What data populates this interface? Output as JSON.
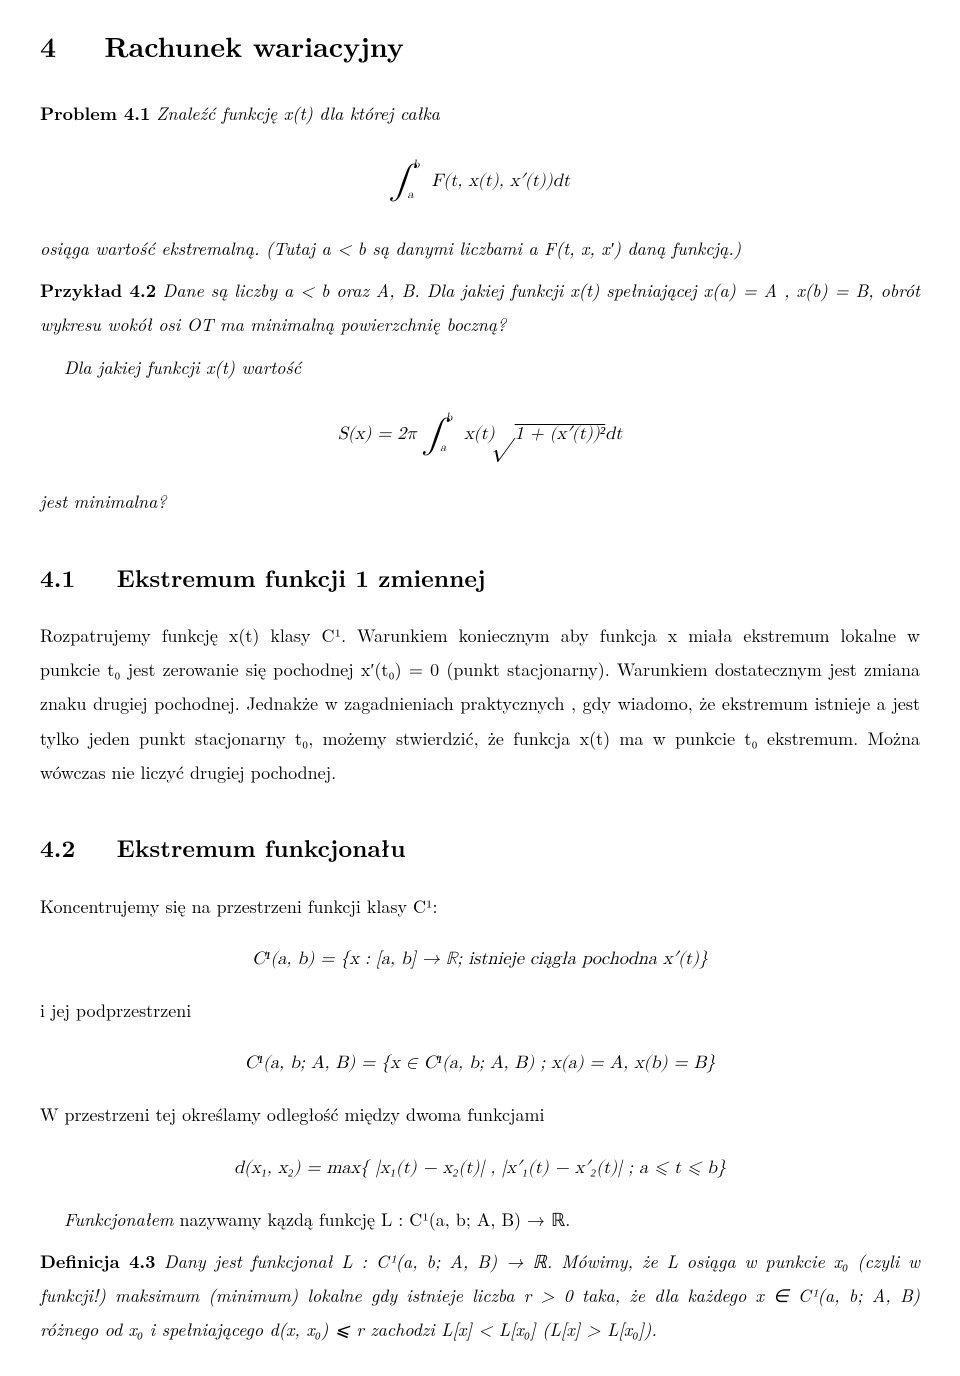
{
  "title": {
    "num": "4",
    "text": "Rachunek wariacyjny"
  },
  "problem": {
    "label": "Problem 4.1",
    "lead": "Znaleźć funkcję x(t) dla której całka",
    "tail": "osiąga wartość ekstremalną. (Tutaj a < b są danymi liczbami a F(t, x, x′) daną funkcją.)"
  },
  "eq1": {
    "int": "∫",
    "a": "a",
    "b": "b",
    "body": "F(t, x(t), x′(t))dt"
  },
  "example": {
    "label": "Przykład 4.2",
    "l1": "Dane są liczby a < b oraz A, B. Dla jakiej funkcji x(t) spełniającej x(a) = A , x(b) = B, obrót wykresu wokół osi OT ma minimalną powierzchnię boczną?",
    "l2": "Dla jakiej funkcji x(t) wartość",
    "l3": "jest minimalna?"
  },
  "eq2": {
    "lhs": "S(x) = 2π",
    "int": "∫",
    "a": "a",
    "b": "b",
    "mid": "x(t)",
    "sq": "√",
    "under": "1 + (x′(t))²",
    "dt": "dt"
  },
  "sec41": {
    "num": "4.1",
    "title": "Ekstremum funkcji 1 zmiennej",
    "p": "Rozpatrujemy funkcję x(t) klasy C¹. Warunkiem koniecznym aby funkcja x miała ekstremum lokalne w punkcie t₀ jest zerowanie się pochodnej x′(t₀) = 0 (punkt stacjonarny). Warunkiem dostatecznym jest zmiana znaku drugiej pochodnej. Jednakże w zagadnieniach praktycznych , gdy wiadomo, że ekstremum istnieje a jest tylko jeden punkt stacjonarny t₀, możemy stwierdzić, że funkcja x(t) ma w punkcie t₀ ekstremum. Można wówczas nie liczyć drugiej pochodnej."
  },
  "sec42": {
    "num": "4.2",
    "title": "Ekstremum funkcjonału",
    "p1": "Koncentrujemy się na przestrzeni funkcji klasy C¹:",
    "eq3": "C¹(a, b) = {x : [a, b] → ℝ;  istnieje ciągła pochodna x′(t)}",
    "p2": "i jej podprzestrzeni",
    "eq4": "C¹(a, b; A, B) = {x ∈ C¹(a, b; A, B) ;  x(a) = A, x(b) = B}",
    "p3": "W przestrzeni tej określamy odległość między dwoma funkcjami",
    "eq5": "d(x₁, x₂) = max{ |x₁(t) − x₂(t)| , |x′₁(t) − x′₂(t)| ; a ⩽ t ⩽ b}",
    "p4a": "Funkcjonałem",
    "p4b": " nazywamy kązdą funkcję L : C¹(a, b; A, B) → ℝ."
  },
  "def": {
    "label": "Definicja 4.3",
    "body": "Dany jest funkcjonał L : C¹(a, b; A, B) → ℝ. Mówimy, że L osiąga w punkcie x₀ (czyli w funkcji!) maksimum (minimum) lokalne gdy istnieje liczba r > 0 taka, że dla każdego x ∈ C¹(a, b; A, B) różnego od x₀ i spełniającego d(x, x₀) ⩽ r zachodzi L[x] < L[x₀] (L[x] > L[x₀])."
  }
}
